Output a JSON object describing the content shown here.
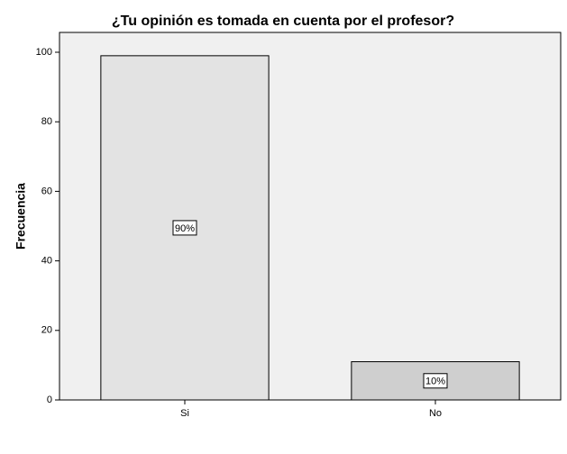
{
  "chart_data": {
    "type": "bar",
    "title": "¿Tu opinión es tomada en cuenta por el profesor?",
    "y_label": "Frecuencia",
    "categories": [
      "Si",
      "No"
    ],
    "values": [
      99,
      11
    ],
    "colors": [
      "#e3e3e3",
      "#cfcfcf"
    ],
    "percentages": [
      90,
      10
    ],
    "percentage_labels": [
      "90%",
      "10%"
    ],
    "ylim": [
      0,
      105.7
    ],
    "yticks": [
      0,
      20,
      40,
      60,
      80,
      100
    ],
    "grid": false
  }
}
